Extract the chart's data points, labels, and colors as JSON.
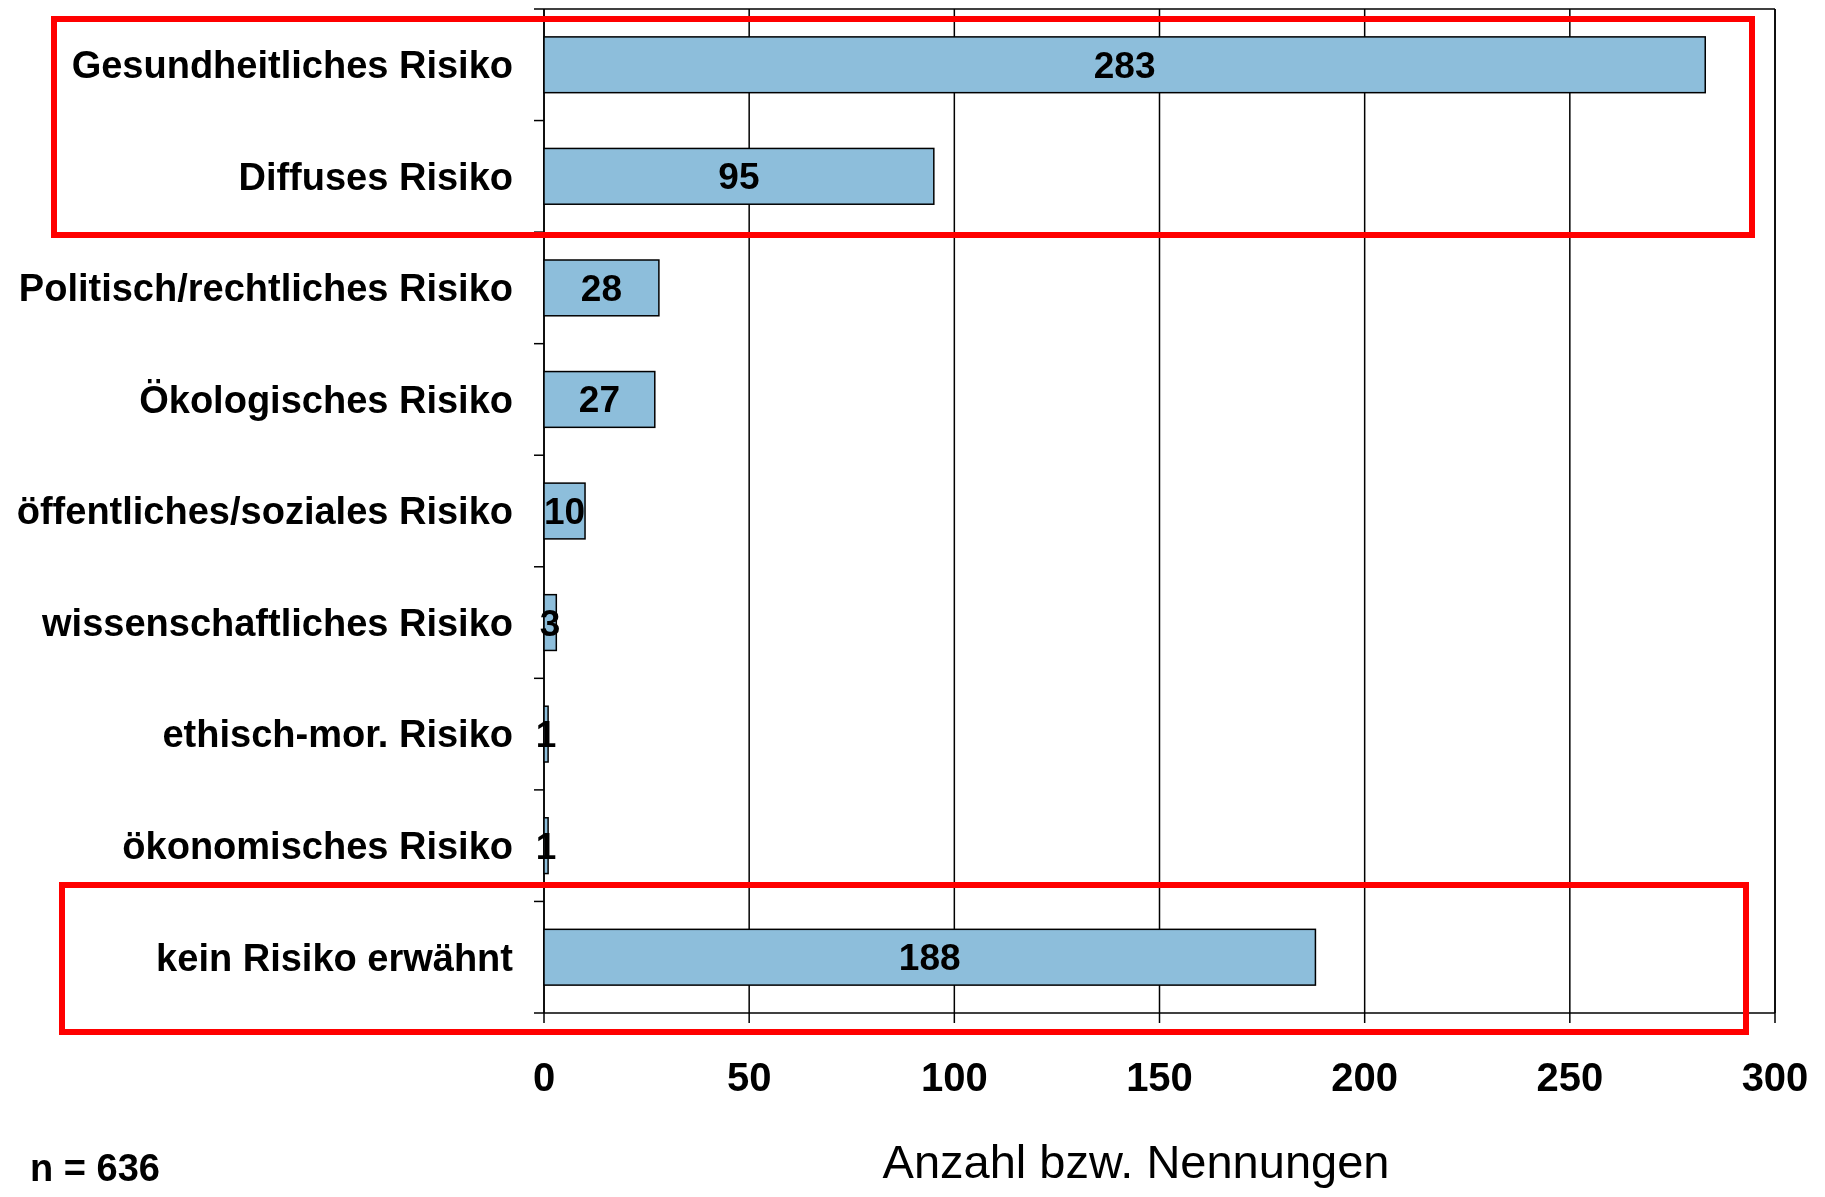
{
  "chart_data": {
    "type": "bar",
    "orientation": "horizontal",
    "xlabel": "Anzahl bzw. Nennungen",
    "categories": [
      "Gesundheitliches Risiko",
      "Diffuses Risiko",
      "Politisch/rechtliches Risiko",
      "Ökologisches Risiko",
      "öffentliches/soziales Risiko",
      "wissenschaftliches Risiko",
      "ethisch-mor. Risiko",
      "ökonomisches Risiko",
      "kein Risiko erwähnt"
    ],
    "values": [
      283,
      95,
      28,
      27,
      10,
      3,
      1,
      1,
      188
    ],
    "color": "#8dbedb",
    "xlim": [
      0,
      300
    ],
    "xticks": [
      0,
      50,
      100,
      150,
      200,
      250,
      300
    ],
    "grid": "x",
    "data_labels": true,
    "annotations": [
      "n = 636"
    ]
  }
}
